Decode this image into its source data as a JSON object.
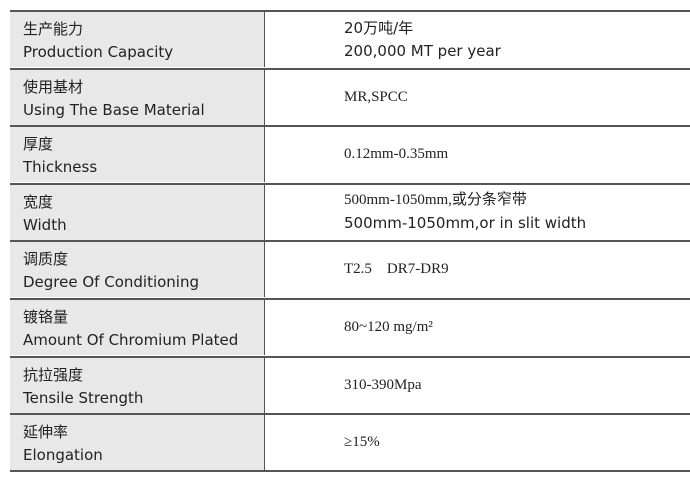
{
  "table": {
    "rows": [
      {
        "label_cn": "生产能力",
        "label_en": "Production Capacity",
        "value": [
          "20万吨/年",
          "200,000 MT per year"
        ]
      },
      {
        "label_cn": "使用基材",
        "label_en": "Using The Base Material",
        "value": [
          "MR,SPCC"
        ]
      },
      {
        "label_cn": "厚度",
        "label_en": "Thickness",
        "value": [
          "0.12mm-0.35mm"
        ]
      },
      {
        "label_cn": "宽度",
        "label_en": "Width",
        "value": [
          "500mm-1050mm,或分条窄带",
          "500mm-1050mm,or in slit width"
        ]
      },
      {
        "label_cn": "调质度",
        "label_en": "Degree Of Conditioning",
        "value": [
          "T2.5    DR7-DR9"
        ]
      },
      {
        "label_cn": "镀铬量",
        "label_en": "Amount Of Chromium Plated",
        "value": [
          "80~120 mg/m²"
        ]
      },
      {
        "label_cn": "抗拉强度",
        "label_en": "Tensile Strength",
        "value": [
          "310-390Mpa"
        ]
      },
      {
        "label_cn": "延伸率",
        "label_en": "Elongation",
        "value": [
          "≥15%"
        ]
      }
    ]
  }
}
